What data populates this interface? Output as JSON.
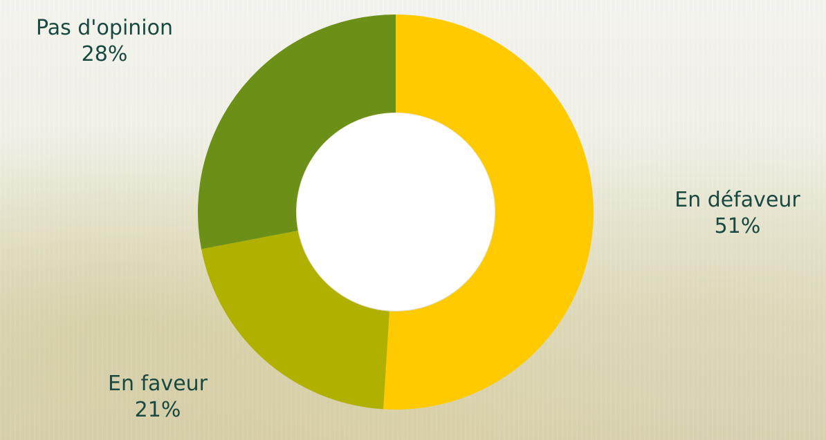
{
  "chart_data": {
    "type": "pie",
    "variant": "donut",
    "title": "",
    "series": [
      {
        "values": [
          51,
          21,
          28
        ]
      }
    ],
    "categories": [
      "En défaveur",
      "En faveur",
      "Pas d'opinion"
    ],
    "slices": [
      {
        "label": "En défaveur",
        "value": 51,
        "value_label": "51%",
        "color": "#ffcb00"
      },
      {
        "label": "En faveur",
        "value": 21,
        "value_label": "21%",
        "color": "#afb000"
      },
      {
        "label": "Pas d'opinion",
        "value": 28,
        "value_label": "28%",
        "color": "#6b8f17"
      }
    ],
    "legend": "none"
  }
}
